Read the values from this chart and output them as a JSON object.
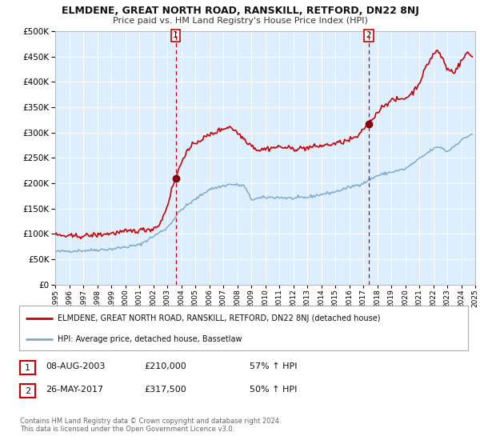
{
  "title": "ELMDENE, GREAT NORTH ROAD, RANSKILL, RETFORD, DN22 8NJ",
  "subtitle": "Price paid vs. HM Land Registry's House Price Index (HPI)",
  "legend_line1": "ELMDENE, GREAT NORTH ROAD, RANSKILL, RETFORD, DN22 8NJ (detached house)",
  "legend_line2": "HPI: Average price, detached house, Bassetlaw",
  "sale1_date": "08-AUG-2003",
  "sale1_price": 210000,
  "sale1_hpi": "57% ↑ HPI",
  "sale2_date": "26-MAY-2017",
  "sale2_price": 317500,
  "sale2_hpi": "50% ↑ HPI",
  "vline1_x": 2003.6,
  "vline2_x": 2017.4,
  "sale1_marker_x": 2003.6,
  "sale1_marker_y": 210000,
  "sale2_marker_x": 2017.4,
  "sale2_marker_y": 317500,
  "footer": "Contains HM Land Registry data © Crown copyright and database right 2024.\nThis data is licensed under the Open Government Licence v3.0.",
  "red_color": "#cc0000",
  "blue_color": "#7faacc",
  "background_color": "#ddeeff",
  "ylim": [
    0,
    500000
  ],
  "xlim_start": 1995,
  "xlim_end": 2025
}
